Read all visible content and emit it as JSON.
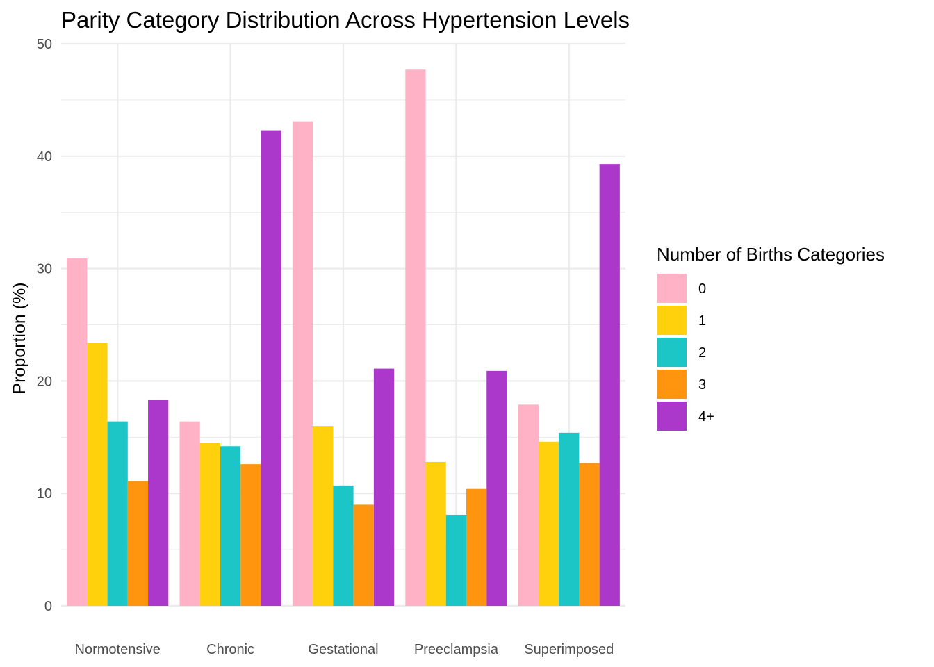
{
  "chart_data": {
    "type": "bar",
    "title": "Parity Category Distribution Across Hypertension Levels",
    "xlabel": "",
    "ylabel": "Proportion (%)",
    "ylim": [
      0,
      50
    ],
    "yticks": [
      0,
      10,
      20,
      30,
      40,
      50
    ],
    "grid": true,
    "legend_position": "right",
    "legend_title": "Number of Births Categories",
    "categories": [
      "Normotensive",
      "Chronic",
      "Gestational",
      "Preeclampsia",
      "Superimposed"
    ],
    "series": [
      {
        "name": "0",
        "color": "#FFB1C6",
        "values": [
          30.9,
          16.4,
          43.1,
          47.7,
          17.9
        ]
      },
      {
        "name": "1",
        "color": "#FFD10D",
        "values": [
          23.4,
          14.5,
          16.0,
          12.8,
          14.6
        ]
      },
      {
        "name": "2",
        "color": "#1CC6C6",
        "values": [
          16.4,
          14.2,
          10.7,
          8.1,
          15.4
        ]
      },
      {
        "name": "3",
        "color": "#FF950E",
        "values": [
          11.1,
          12.6,
          9.0,
          10.4,
          12.7
        ]
      },
      {
        "name": "4+",
        "color": "#AB38CB",
        "values": [
          18.3,
          42.3,
          21.1,
          20.9,
          39.3
        ]
      }
    ]
  }
}
